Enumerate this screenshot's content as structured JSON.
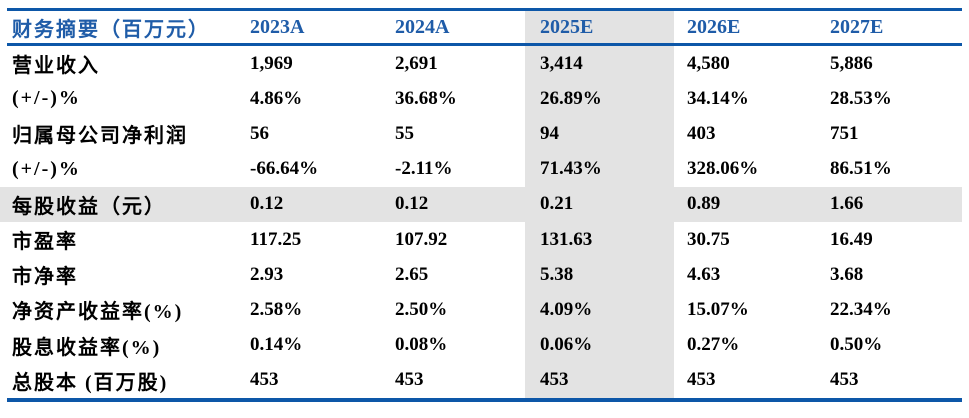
{
  "table": {
    "header": {
      "label": "财务摘要（百万元）",
      "columns": [
        "2023A",
        "2024A",
        "2025E",
        "2026E",
        "2027E"
      ]
    },
    "highlight_column": "2025E",
    "rows": [
      {
        "label": "营业收入",
        "values": [
          "1,969",
          "2,691",
          "3,414",
          "4,580",
          "5,886"
        ],
        "highlight": false
      },
      {
        "label": "(+/-)%",
        "values": [
          "4.86%",
          "36.68%",
          "26.89%",
          "34.14%",
          "28.53%"
        ],
        "highlight": false
      },
      {
        "label": "归属母公司净利润",
        "values": [
          "56",
          "55",
          "94",
          "403",
          "751"
        ],
        "highlight": false
      },
      {
        "label": "(+/-)%",
        "values": [
          "-66.64%",
          "-2.11%",
          "71.43%",
          "328.06%",
          "86.51%"
        ],
        "highlight": false
      },
      {
        "label": "每股收益（元）",
        "values": [
          "0.12",
          "0.12",
          "0.21",
          "0.89",
          "1.66"
        ],
        "highlight": true
      },
      {
        "label": "市盈率",
        "values": [
          "117.25",
          "107.92",
          "131.63",
          "30.75",
          "16.49"
        ],
        "highlight": false
      },
      {
        "label": "市净率",
        "values": [
          "2.93",
          "2.65",
          "5.38",
          "4.63",
          "3.68"
        ],
        "highlight": false
      },
      {
        "label": "净资产收益率(%)",
        "values": [
          "2.58%",
          "2.50%",
          "4.09%",
          "15.07%",
          "22.34%"
        ],
        "highlight": false
      },
      {
        "label": "股息收益率(%)",
        "values": [
          "0.14%",
          "0.08%",
          "0.06%",
          "0.27%",
          "0.50%"
        ],
        "highlight": false
      },
      {
        "label": "总股本 (百万股)",
        "values": [
          "453",
          "453",
          "453",
          "453",
          "453"
        ],
        "highlight": false
      }
    ],
    "colors": {
      "rule_blue": "#0d57a8",
      "header_text_blue": "#1f5ca8",
      "highlight_gray": "#e3e3e3"
    }
  }
}
